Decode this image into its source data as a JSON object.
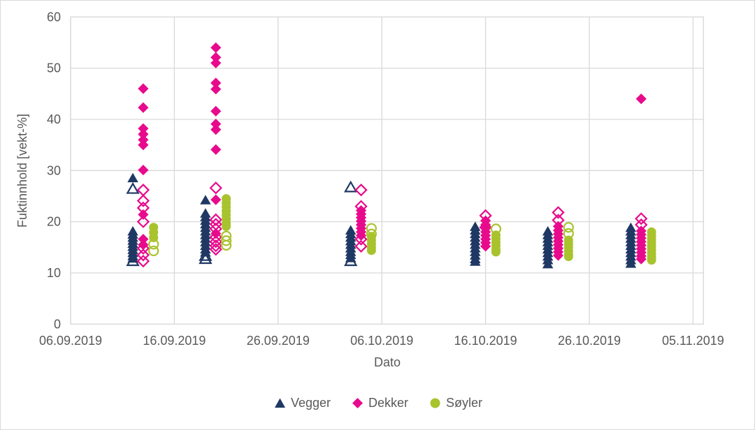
{
  "chart_data": {
    "type": "scatter",
    "title": "",
    "xlabel": "Dato",
    "ylabel": "Fuktinnhold [vekt-%]",
    "ylim": [
      0,
      60
    ],
    "y_ticks": [
      0,
      10,
      20,
      30,
      40,
      50,
      60
    ],
    "grid": true,
    "legend_position": "bottom",
    "x_axis": {
      "start": "06.09.2019",
      "end": "06.11.2019",
      "tick_interval_days": 10,
      "tick_labels": [
        "06.09.2019",
        "16.09.2019",
        "26.09.2019",
        "06.10.2019",
        "16.10.2019",
        "26.10.2019",
        "05.11.2019"
      ]
    },
    "colors": {
      "grid": "#d9d9d9",
      "axis_text": "#595959"
    },
    "series": [
      {
        "name": "Vegger",
        "marker": "triangle",
        "color": "#1f3864",
        "clusters": [
          {
            "date": "12.09.2019",
            "filled": [
              28.4,
              18.0,
              17.4,
              16.8,
              16.2,
              15.6,
              15.0,
              14.4,
              13.8,
              13.2,
              12.7
            ],
            "open": [
              26.3,
              12.2
            ]
          },
          {
            "date": "19.09.2019",
            "filled": [
              24.1,
              21.5,
              20.8,
              20.1,
              19.4,
              18.7,
              18.0,
              17.3,
              16.6,
              15.9,
              15.2,
              14.5,
              13.9
            ],
            "open": [
              13.2,
              12.6
            ]
          },
          {
            "date": "03.10.2019",
            "filled": [
              18.2,
              17.5,
              16.8,
              16.1,
              15.4,
              14.7,
              14.0,
              13.4,
              12.8
            ],
            "open": [
              26.6,
              12.2
            ]
          },
          {
            "date": "15.10.2019",
            "filled": [
              18.9,
              18.2,
              17.5,
              16.8,
              16.1,
              15.4,
              14.7,
              14.0,
              13.3,
              12.6,
              12.1
            ],
            "open": []
          },
          {
            "date": "22.10.2019",
            "filled": [
              18.0,
              17.3,
              16.6,
              15.9,
              15.2,
              14.5,
              13.8,
              13.1,
              12.4,
              11.6
            ],
            "open": []
          },
          {
            "date": "30.10.2019",
            "filled": [
              18.7,
              18.0,
              17.3,
              16.6,
              15.9,
              15.2,
              14.5,
              13.8,
              13.1,
              12.4,
              11.7
            ],
            "open": []
          }
        ]
      },
      {
        "name": "Dekker",
        "marker": "diamond",
        "color": "#e80a8c",
        "clusters": [
          {
            "date": "13.09.2019",
            "filled": [
              46.0,
              42.3,
              38.2,
              37.1,
              36.0,
              35.0,
              30.1,
              21.4,
              16.6,
              15.5
            ],
            "open": [
              26.2,
              24.1,
              22.7,
              20.0,
              14.8,
              13.5,
              12.3
            ]
          },
          {
            "date": "20.09.2019",
            "filled": [
              54.0,
              52.1,
              51.0,
              47.1,
              45.9,
              41.6,
              39.1,
              38.0,
              34.1,
              24.3,
              17.7
            ],
            "open": [
              26.6,
              20.4,
              19.5,
              18.6,
              17.0,
              16.1,
              15.3,
              14.6
            ]
          },
          {
            "date": "04.10.2019",
            "filled": [
              22.2,
              21.5,
              20.8,
              20.1,
              19.4,
              18.7,
              18.0,
              17.3
            ],
            "open": [
              26.2,
              23.0,
              16.6,
              15.2
            ]
          },
          {
            "date": "16.10.2019",
            "filled": [
              20.2,
              19.4,
              18.7,
              18.0,
              17.3,
              16.6,
              15.9,
              15.2
            ],
            "open": [
              21.2,
              18.9
            ]
          },
          {
            "date": "23.10.2019",
            "filled": [
              19.1,
              18.3,
              17.6,
              16.9,
              16.2,
              15.5,
              14.8,
              14.1,
              13.4
            ],
            "open": [
              21.8,
              20.3
            ]
          },
          {
            "date": "31.10.2019",
            "filled": [
              44.0,
              18.2,
              17.5,
              16.8,
              16.1,
              15.4,
              14.7,
              14.0,
              13.3,
              12.7
            ],
            "open": [
              20.6,
              19.4
            ]
          }
        ]
      },
      {
        "name": "Søyler",
        "marker": "circle",
        "color": "#a8c32d",
        "clusters": [
          {
            "date": "14.09.2019",
            "filled": [
              18.9,
              17.9,
              16.9
            ],
            "open": [
              15.6,
              14.3
            ]
          },
          {
            "date": "21.09.2019",
            "filled": [
              24.5,
              23.7,
              22.9,
              22.1,
              21.3,
              20.5,
              19.7,
              19.1
            ],
            "open": [
              17.2,
              16.3,
              15.4
            ]
          },
          {
            "date": "05.10.2019",
            "filled": [
              17.1,
              16.4,
              15.7,
              15.0,
              14.4
            ],
            "open": [
              18.7,
              17.6
            ]
          },
          {
            "date": "17.10.2019",
            "filled": [
              17.4,
              16.7,
              16.0,
              15.3,
              14.6,
              14.1
            ],
            "open": [
              18.6
            ]
          },
          {
            "date": "24.10.2019",
            "filled": [
              16.4,
              15.7,
              15.0,
              14.3,
              13.6,
              13.2
            ],
            "open": [
              18.9,
              17.7
            ]
          },
          {
            "date": "01.11.2019",
            "filled": [
              18.0,
              17.3,
              16.6,
              15.9,
              15.2,
              14.5,
              13.8,
              13.1,
              12.5
            ],
            "open": []
          }
        ]
      }
    ]
  }
}
